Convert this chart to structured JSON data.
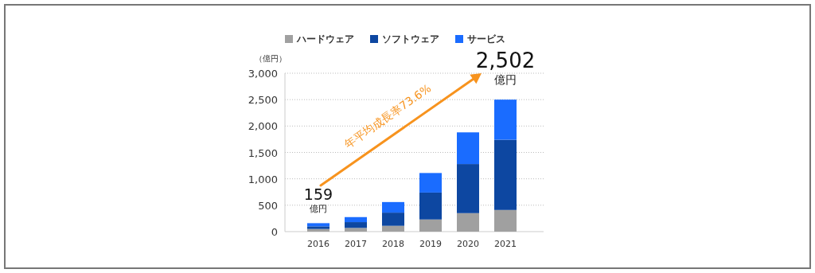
{
  "chart_data": {
    "type": "bar",
    "stacked": true,
    "ylabel": "（億円）",
    "categories": [
      "2016",
      "2017",
      "2018",
      "2019",
      "2020",
      "2021"
    ],
    "series": [
      {
        "name": "ハードウェア",
        "color": "#a0a0a0",
        "values": [
          50,
          70,
          110,
          230,
          350,
          410
        ]
      },
      {
        "name": "ソフトウェア",
        "color": "#0d47a1",
        "values": [
          50,
          110,
          250,
          510,
          930,
          1330
        ]
      },
      {
        "name": "サービス",
        "color": "#1a6cff",
        "values": [
          60,
          95,
          200,
          370,
          600,
          760
        ]
      }
    ],
    "ylim": [
      0,
      3000
    ],
    "yticks": [
      {
        "value": 0,
        "label": "0"
      },
      {
        "value": 500,
        "label": "500"
      },
      {
        "value": 1000,
        "label": "1,000"
      },
      {
        "value": 1500,
        "label": "1,500"
      },
      {
        "value": 2000,
        "label": "2,000"
      },
      {
        "value": 2500,
        "label": "2,500"
      },
      {
        "value": 3000,
        "label": "3,000"
      }
    ],
    "grid": "y",
    "legend": "top",
    "annotations": [
      {
        "text": "159",
        "x": "2016",
        "y": 159
      },
      {
        "text": "億円",
        "x": "2016",
        "y": 159
      },
      {
        "text": "2,502",
        "x": "2021",
        "y": 2502
      },
      {
        "text": "億円",
        "x": "2021",
        "y": 2502
      },
      "年平均成長率73.6%"
    ]
  }
}
